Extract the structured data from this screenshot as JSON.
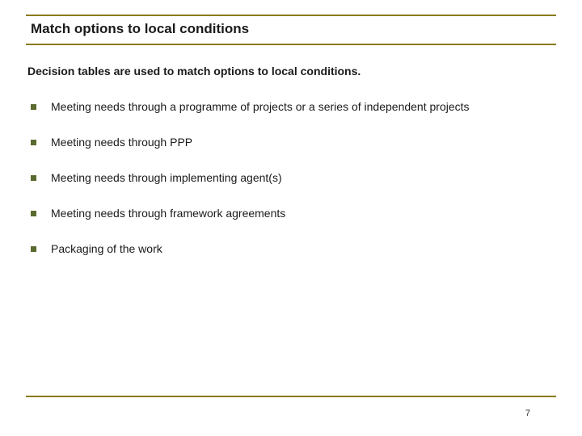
{
  "colors": {
    "accent": "#8a7a1e",
    "bullet": "#5a6b2f",
    "text": "#1a1a1a",
    "page_num": "#333333"
  },
  "title": "Match options to local conditions",
  "title_fontsize": 17,
  "subtitle": "Decision tables are used to match options to local conditions.",
  "subtitle_fontsize": 14,
  "bullets": [
    "Meeting needs through a programme of projects or a series of independent projects",
    "Meeting needs through PPP",
    "Meeting needs through implementing agent(s)",
    "Meeting needs through framework agreements",
    "Packaging of the work"
  ],
  "bullet_fontsize": 14,
  "bullet_marker_size": 7,
  "page_number": "7"
}
